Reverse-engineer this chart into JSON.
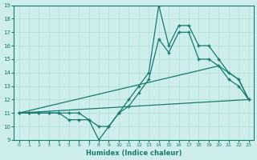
{
  "xlabel": "Humidex (Indice chaleur)",
  "xlim": [
    -0.5,
    23.5
  ],
  "ylim": [
    9,
    19
  ],
  "xticks": [
    0,
    1,
    2,
    3,
    4,
    5,
    6,
    7,
    8,
    9,
    10,
    11,
    12,
    13,
    14,
    15,
    16,
    17,
    18,
    19,
    20,
    21,
    22,
    23
  ],
  "yticks": [
    9,
    10,
    11,
    12,
    13,
    14,
    15,
    16,
    17,
    18,
    19
  ],
  "bg_color": "#cdeeed",
  "grid_color": "#b0ddd5",
  "line_color": "#1a7a6e",
  "line1_x": [
    0,
    1,
    2,
    3,
    4,
    5,
    6,
    7,
    8,
    9,
    10,
    11,
    12,
    13,
    14,
    15,
    16,
    17,
    18,
    19,
    20,
    21,
    22,
    23
  ],
  "line1_y": [
    11,
    11,
    11,
    11,
    11,
    10.5,
    10.5,
    10.5,
    9,
    10,
    11,
    12,
    13,
    14,
    19,
    16,
    17.5,
    17.5,
    16,
    16,
    15,
    14,
    13.5,
    12
  ],
  "line2_x": [
    0,
    1,
    2,
    3,
    4,
    5,
    6,
    7,
    8,
    9,
    10,
    11,
    12,
    13,
    14,
    15,
    16,
    17,
    18,
    19,
    20,
    21,
    22,
    23
  ],
  "line2_y": [
    11,
    11,
    11,
    11,
    11,
    11,
    11,
    10.5,
    10,
    10,
    11,
    11.5,
    12.5,
    13.5,
    16.5,
    15.5,
    17,
    17,
    15,
    15,
    14.5,
    13.5,
    13,
    12
  ],
  "line3_x": [
    0,
    20,
    22,
    23
  ],
  "line3_y": [
    11,
    14.5,
    13.5,
    12
  ],
  "line4_x": [
    0,
    23
  ],
  "line4_y": [
    11,
    12
  ]
}
